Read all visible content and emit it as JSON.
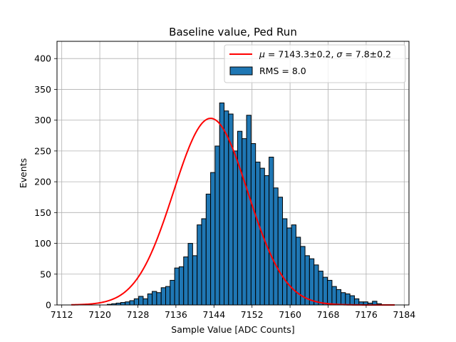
{
  "chart_data": {
    "type": "bar",
    "title": "Baseline value, Ped Run",
    "xlabel": "Sample Value [ADC Counts]",
    "ylabel": "Events",
    "xlim": [
      7111,
      7185
    ],
    "ylim": [
      0,
      428
    ],
    "xticks": [
      7112,
      7120,
      7128,
      7136,
      7144,
      7152,
      7160,
      7168,
      7176,
      7184
    ],
    "yticks": [
      0,
      50,
      100,
      150,
      200,
      250,
      300,
      350,
      400
    ],
    "grid": true,
    "legend_position": "top-right",
    "histogram": {
      "name": "RMS = 8.0",
      "color": "#1f77b4",
      "edge_color": "#000000",
      "bin_start": 7114,
      "bin_width": 0.945,
      "counts": [
        0,
        0,
        0,
        0,
        0,
        0,
        0,
        0,
        1,
        2,
        3,
        4,
        5,
        7,
        10,
        14,
        10,
        18,
        22,
        20,
        28,
        30,
        40,
        60,
        62,
        78,
        100,
        80,
        130,
        140,
        180,
        215,
        258,
        328,
        315,
        310,
        250,
        282,
        270,
        308,
        262,
        232,
        222,
        210,
        240,
        190,
        175,
        140,
        125,
        130,
        110,
        95,
        80,
        75,
        65,
        55,
        45,
        40,
        30,
        25,
        20,
        18,
        15,
        10,
        5,
        5,
        3,
        6,
        2,
        0,
        0,
        0,
        0,
        0,
        0,
        0,
        0
      ]
    },
    "fit": {
      "name": "μ = 7143.3±0.2, σ = 7.8±0.2",
      "mu_label": "μ",
      "mu_value": "7143.3±0.2",
      "sigma_label": "σ",
      "sigma_value": "7.8±0.2",
      "color": "#ff0000",
      "mu": 7143.3,
      "sigma": 7.8,
      "amplitude": 303,
      "x_range": [
        7114,
        7182
      ]
    }
  }
}
